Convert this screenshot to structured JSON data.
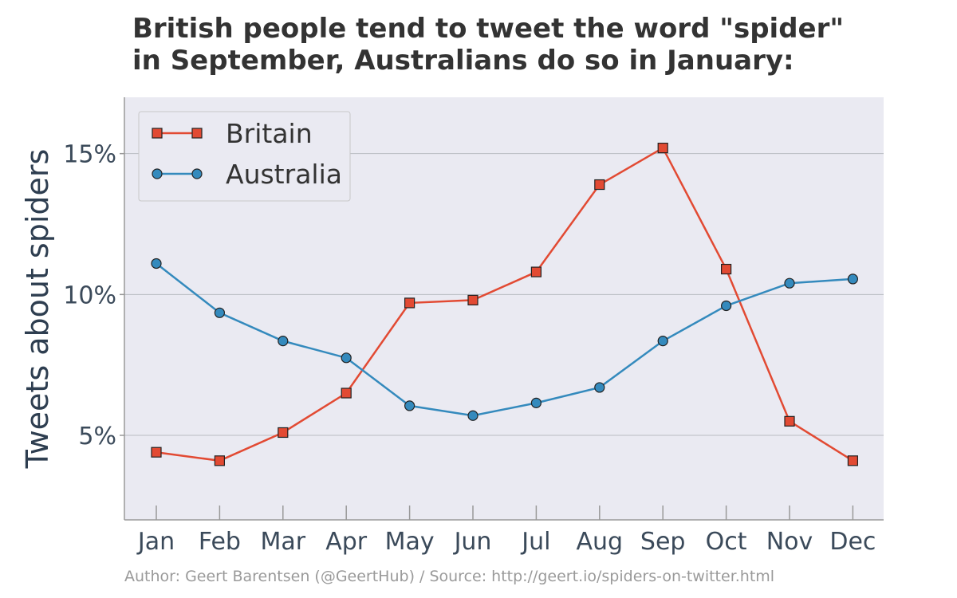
{
  "chart_data": {
    "type": "line",
    "title_lines": [
      "British people tend to tweet the word \"spider\"",
      "in September, Australians do so in January:"
    ],
    "xlabel": "",
    "ylabel": "Tweets about spiders",
    "categories": [
      "Jan",
      "Feb",
      "Mar",
      "Apr",
      "May",
      "Jun",
      "Jul",
      "Aug",
      "Sep",
      "Oct",
      "Nov",
      "Dec"
    ],
    "series": [
      {
        "name": "Britain",
        "color": "#e24a33",
        "marker": "square",
        "values": [
          4.4,
          4.1,
          5.1,
          6.5,
          9.7,
          9.8,
          10.8,
          13.9,
          15.2,
          10.9,
          5.5,
          4.1
        ]
      },
      {
        "name": "Australia",
        "color": "#348abd",
        "marker": "circle",
        "values": [
          11.1,
          9.35,
          8.35,
          7.75,
          6.05,
          5.7,
          6.15,
          6.7,
          8.35,
          9.6,
          10.4,
          10.55
        ]
      }
    ],
    "yticks": [
      5,
      10,
      15
    ],
    "ytick_labels": [
      "5%",
      "10%",
      "15%"
    ],
    "ylim": [
      2.0,
      17.0
    ],
    "grid": true,
    "legend_position": "top-left",
    "background": "#eaeaf2"
  },
  "footer": "Author: Geert Barentsen (@GeertHub) / Source: http://geert.io/spiders-on-twitter.html"
}
